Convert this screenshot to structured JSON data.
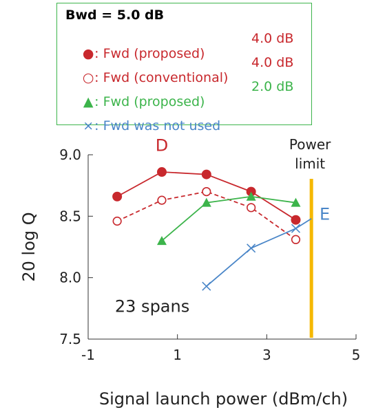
{
  "legend": {
    "title": "Bwd = 5.0 dB",
    "items": [
      {
        "marker": "filled-circle",
        "text": "Fwd (proposed)",
        "value": "4.0 dB",
        "color": "#c8282d"
      },
      {
        "marker": "open-circle",
        "text": "Fwd (conventional)",
        "value": "4.0 dB",
        "color": "#c8282d"
      },
      {
        "marker": "filled-triangle",
        "text": "Fwd (proposed)",
        "value": "2.0 dB",
        "color": "#3cb44b"
      },
      {
        "marker": "cross",
        "text": "Fwd was not used",
        "value": "",
        "color": "#4a86c8"
      }
    ]
  },
  "chart_data": {
    "type": "line",
    "xlabel": "Signal launch power (dBm/ch)",
    "ylabel": "20 log Q",
    "xlim": [
      -1,
      5
    ],
    "ylim": [
      7.5,
      9.0
    ],
    "xticks": [
      "-1",
      "1",
      "3",
      "5"
    ],
    "yticks": [
      "7.5",
      "8.0",
      "8.5",
      "9.0"
    ],
    "series": [
      {
        "key": "fwd-proposed-4db",
        "marker": "filled-circle",
        "line": "solid",
        "color": "#c8282d",
        "x": [
          -0.35,
          0.65,
          1.65,
          2.65,
          3.65
        ],
        "y": [
          8.66,
          8.86,
          8.84,
          8.7,
          8.47
        ]
      },
      {
        "key": "fwd-conventional-4db",
        "marker": "open-circle",
        "line": "dashed",
        "color": "#c8282d",
        "x": [
          -0.35,
          0.65,
          1.65,
          2.65,
          3.65
        ],
        "y": [
          8.46,
          8.63,
          8.7,
          8.57,
          8.31
        ]
      },
      {
        "key": "fwd-proposed-2db",
        "marker": "filled-triangle",
        "line": "solid",
        "color": "#3cb44b",
        "x": [
          0.65,
          1.65,
          2.65,
          3.65
        ],
        "y": [
          8.3,
          8.61,
          8.66,
          8.61
        ]
      },
      {
        "key": "fwd-not-used",
        "marker": "cross",
        "line": "solid",
        "color": "#4a86c8",
        "x": [
          1.65,
          2.65,
          3.65,
          4.0
        ],
        "y": [
          7.93,
          8.24,
          8.4,
          8.48
        ]
      }
    ],
    "power_limit": {
      "x": 4.0,
      "label_line1": "Power",
      "label_line2": "limit",
      "color": "#f5b800"
    },
    "annotations": [
      {
        "text": "D",
        "x": 0.65,
        "y": 9.03,
        "color": "#c8282d"
      },
      {
        "text": "E",
        "x": 4.3,
        "y": 8.47,
        "color": "#4a86c8"
      },
      {
        "text": "23 spans",
        "x": -0.4,
        "y": 7.72,
        "color": "#222222"
      }
    ]
  }
}
